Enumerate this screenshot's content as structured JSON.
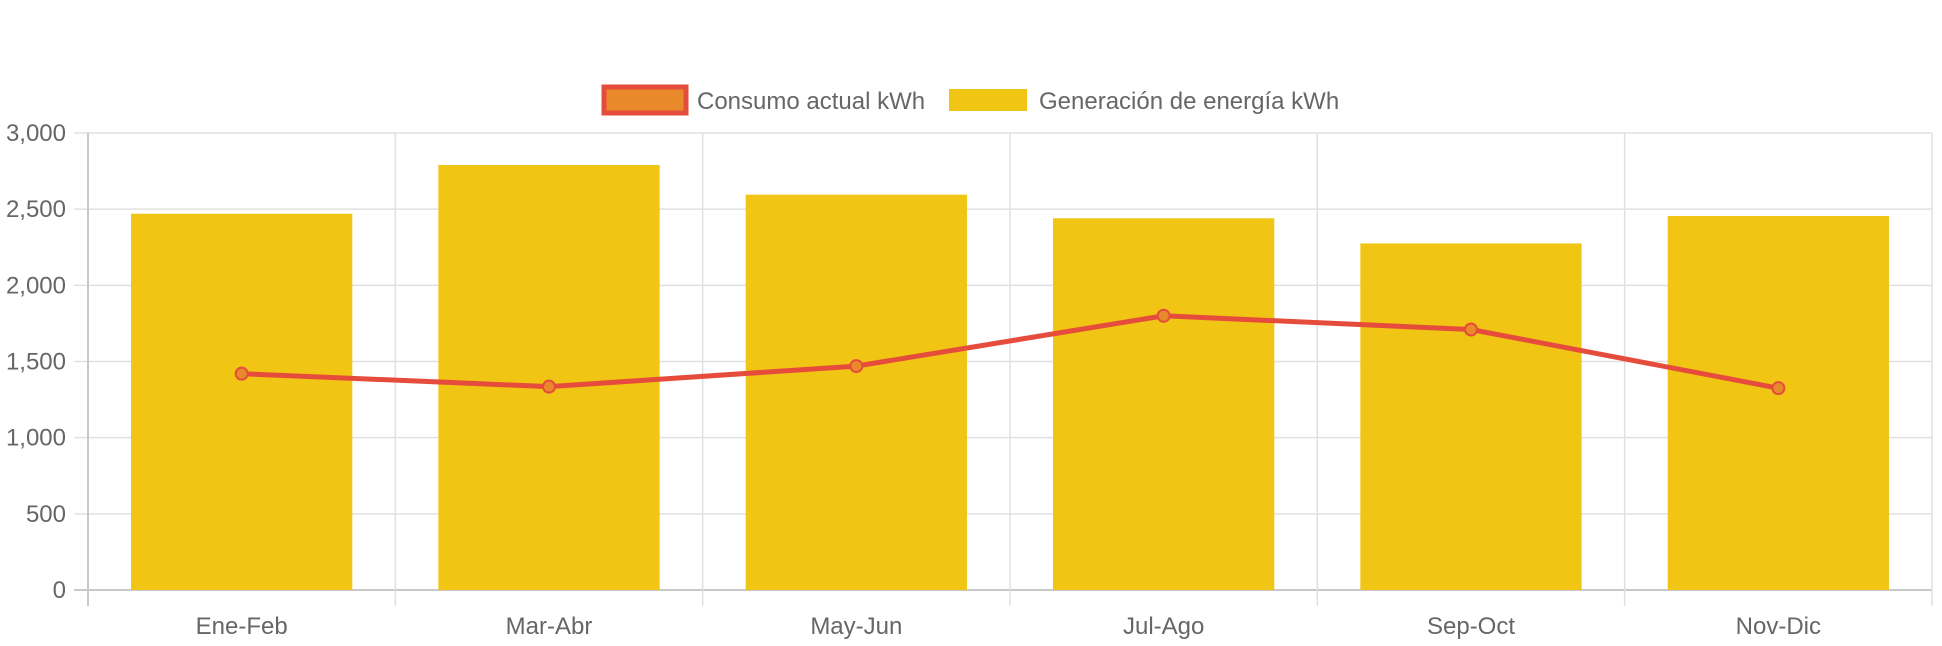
{
  "chart_data": {
    "type": "bar",
    "categories": [
      "Ene-Feb",
      "Mar-Abr",
      "May-Jun",
      "Jul-Ago",
      "Sep-Oct",
      "Nov-Dic"
    ],
    "series": [
      {
        "name": "Generación de energía kWh",
        "type": "bar",
        "values": [
          2470,
          2790,
          2595,
          2440,
          2275,
          2455
        ],
        "color": "#f0c513"
      },
      {
        "name": "Consumo actual kWh",
        "type": "line",
        "values": [
          1420,
          1335,
          1470,
          1800,
          1710,
          1325
        ],
        "color": "#e64c3c",
        "point_fill": "#e98a2a"
      }
    ],
    "y_ticks": [
      "0",
      "500",
      "1,000",
      "1,500",
      "2,000",
      "2,500",
      "3,000"
    ],
    "ylim": [
      0,
      3000
    ],
    "grid": true,
    "legend_position": "top-center",
    "title": "",
    "xlabel": "",
    "ylabel": ""
  }
}
